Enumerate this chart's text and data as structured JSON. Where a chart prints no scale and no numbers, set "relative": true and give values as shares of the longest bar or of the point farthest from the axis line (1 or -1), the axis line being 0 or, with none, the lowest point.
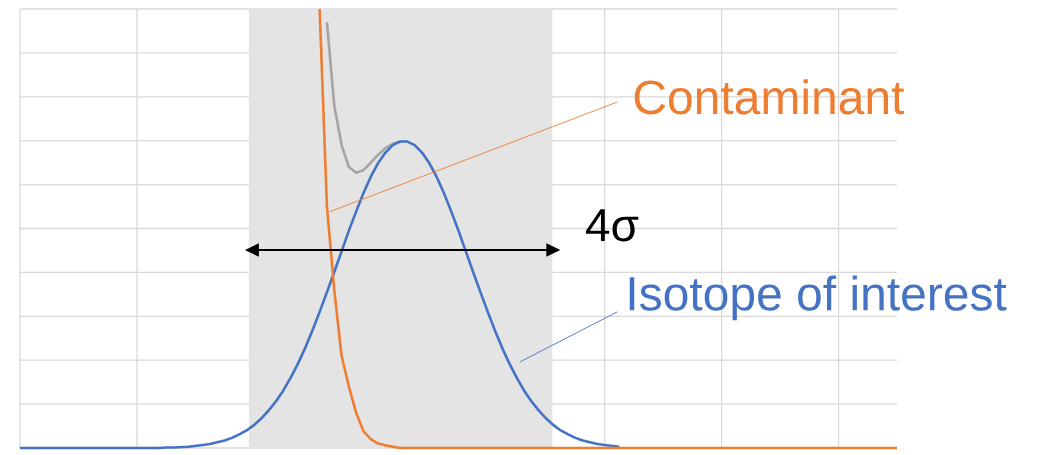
{
  "chart_data": {
    "type": "line",
    "relative": true,
    "grid": true,
    "categories": [
      null,
      null,
      null,
      null,
      null,
      null,
      null,
      null,
      null,
      null,
      null,
      null,
      null,
      null,
      null,
      null,
      null,
      null,
      null,
      null,
      null,
      null,
      null,
      null,
      null,
      null,
      null,
      null,
      null,
      null,
      null,
      null,
      null,
      null,
      null,
      null,
      null,
      null,
      null,
      null,
      null,
      null,
      null,
      null,
      null,
      null,
      null,
      null,
      null,
      null,
      null,
      null,
      null,
      null,
      null,
      null,
      null,
      null,
      null,
      null,
      null,
      null,
      null,
      null,
      null,
      null,
      null,
      null,
      null,
      null,
      null,
      null,
      null,
      null,
      null,
      null,
      null,
      null,
      null,
      null,
      null,
      null,
      null,
      null,
      null,
      null,
      null,
      null,
      null,
      null,
      null,
      null,
      null,
      null,
      null,
      null,
      null,
      null,
      null,
      null,
      null,
      null,
      null,
      null,
      null,
      null,
      null,
      null,
      null,
      null,
      null,
      null,
      null,
      null,
      null,
      null,
      null,
      null,
      null,
      null,
      null
    ],
    "annotations": [
      "4σ"
    ],
    "series": [
      {
        "name": "Isotope of interest",
        "color": "#4472c4",
        "values": [
          0,
          0,
          0,
          0,
          0,
          0,
          0,
          0,
          0,
          0,
          0,
          0,
          0,
          0,
          0,
          0,
          0,
          0,
          0,
          0,
          0.001,
          0.001,
          0.002,
          0.003,
          0.005,
          0.007,
          0.009,
          0.013,
          0.017,
          0.023,
          0.031,
          0.04,
          0.052,
          0.067,
          0.085,
          0.106,
          0.13,
          0.159,
          0.191,
          0.227,
          0.267,
          0.31,
          0.355,
          0.401,
          0.448,
          0.495,
          0.539,
          0.581,
          0.618,
          0.649,
          0.673,
          0.69,
          0.698,
          0.698,
          0.69,
          0.673,
          0.649,
          0.618,
          0.581,
          0.539,
          0.495,
          0.448,
          0.401,
          0.355,
          0.31,
          0.267,
          0.227,
          0.191,
          0.159,
          0.13,
          0.106,
          0.085,
          0.067,
          0.052,
          0.04,
          0.031,
          0.023,
          0.017,
          0.013,
          0.009,
          0.007,
          0.005,
          0.003,
          null,
          null,
          null,
          null,
          null,
          null,
          null,
          null,
          null,
          null,
          null,
          null,
          null,
          null,
          null,
          null,
          null,
          null,
          null,
          null,
          null,
          null,
          null,
          null,
          null,
          null,
          null,
          null,
          null,
          null,
          null,
          null,
          null,
          null,
          null,
          null,
          null,
          null
        ]
      },
      {
        "name": "Contaminant",
        "color": "#ed7d31",
        "values": [
          null,
          null,
          null,
          null,
          null,
          null,
          null,
          null,
          null,
          null,
          null,
          null,
          null,
          null,
          null,
          null,
          null,
          null,
          null,
          null,
          null,
          null,
          null,
          null,
          null,
          null,
          null,
          null,
          null,
          null,
          null,
          null,
          null,
          null,
          null,
          null,
          null,
          null,
          null,
          null,
          null,
          1.0,
          0.55,
          0.36,
          0.21,
          0.14,
          0.08,
          0.038,
          0.02,
          0.01,
          0.006,
          0.003,
          0,
          0,
          0,
          0,
          0,
          0,
          0,
          0,
          0,
          0,
          0,
          0,
          0,
          0,
          0,
          0,
          0,
          0,
          0,
          0,
          0,
          0,
          0,
          0,
          0,
          0,
          0,
          0,
          0,
          0,
          0,
          0,
          0,
          0,
          0,
          0,
          0,
          0,
          0,
          0,
          0,
          0,
          0,
          0,
          0,
          0,
          0,
          0,
          0,
          0,
          0,
          0,
          0,
          0,
          0,
          0,
          0,
          0,
          0,
          0,
          0,
          0,
          0,
          0,
          0,
          0,
          0,
          0,
          0
        ]
      },
      {
        "color": "#a5a5a5",
        "values": [
          null,
          null,
          null,
          null,
          null,
          null,
          null,
          null,
          null,
          null,
          null,
          null,
          null,
          null,
          null,
          null,
          null,
          null,
          null,
          null,
          null,
          null,
          null,
          null,
          null,
          null,
          null,
          null,
          null,
          null,
          null,
          null,
          null,
          null,
          null,
          null,
          null,
          null,
          null,
          null,
          null,
          null,
          0.97,
          0.78,
          0.69,
          0.64,
          0.627,
          0.633,
          0.65,
          0.668,
          0.683,
          0.693,
          0.698,
          null,
          null,
          null,
          null,
          null,
          null,
          null,
          null,
          null,
          null,
          null,
          null,
          null,
          null,
          null,
          null,
          null,
          null,
          null,
          null,
          null,
          null,
          null,
          null,
          null,
          null,
          null,
          null,
          null,
          null,
          null,
          null,
          null,
          null,
          null,
          null,
          null,
          null,
          null,
          null,
          null,
          null,
          null,
          null,
          null,
          null,
          null,
          null,
          null,
          null,
          null,
          null,
          null,
          null,
          null,
          null,
          null,
          null,
          null,
          null,
          null,
          null,
          null,
          null,
          null,
          null,
          null,
          null
        ]
      }
    ]
  }
}
